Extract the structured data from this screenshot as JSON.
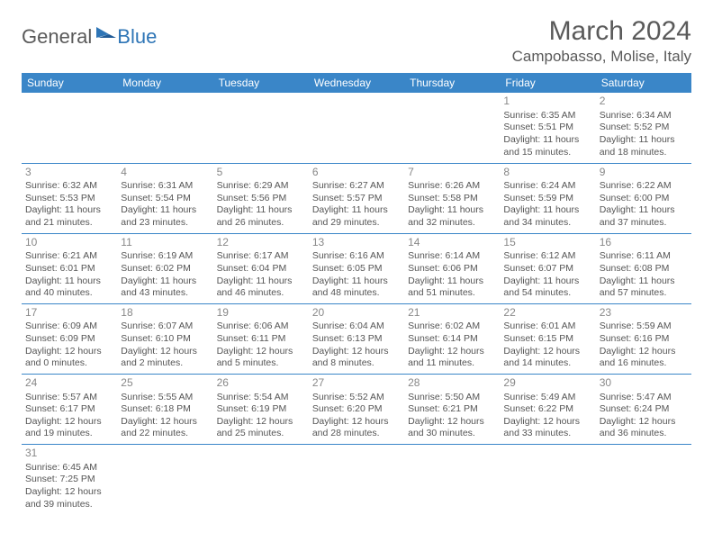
{
  "logo": {
    "general": "General",
    "blue": "Blue"
  },
  "title": "March 2024",
  "location": "Campobasso, Molise, Italy",
  "colors": {
    "header_bg": "#3a86c8",
    "header_text": "#ffffff",
    "grid_line": "#3a86c8",
    "text": "#555555",
    "daynum": "#888888",
    "logo_gray": "#5a5a5a",
    "logo_blue": "#2e75b6"
  },
  "dayHeaders": [
    "Sunday",
    "Monday",
    "Tuesday",
    "Wednesday",
    "Thursday",
    "Friday",
    "Saturday"
  ],
  "weeks": [
    [
      null,
      null,
      null,
      null,
      null,
      {
        "n": "1",
        "sr": "Sunrise: 6:35 AM",
        "ss": "Sunset: 5:51 PM",
        "d1": "Daylight: 11 hours",
        "d2": "and 15 minutes."
      },
      {
        "n": "2",
        "sr": "Sunrise: 6:34 AM",
        "ss": "Sunset: 5:52 PM",
        "d1": "Daylight: 11 hours",
        "d2": "and 18 minutes."
      }
    ],
    [
      {
        "n": "3",
        "sr": "Sunrise: 6:32 AM",
        "ss": "Sunset: 5:53 PM",
        "d1": "Daylight: 11 hours",
        "d2": "and 21 minutes."
      },
      {
        "n": "4",
        "sr": "Sunrise: 6:31 AM",
        "ss": "Sunset: 5:54 PM",
        "d1": "Daylight: 11 hours",
        "d2": "and 23 minutes."
      },
      {
        "n": "5",
        "sr": "Sunrise: 6:29 AM",
        "ss": "Sunset: 5:56 PM",
        "d1": "Daylight: 11 hours",
        "d2": "and 26 minutes."
      },
      {
        "n": "6",
        "sr": "Sunrise: 6:27 AM",
        "ss": "Sunset: 5:57 PM",
        "d1": "Daylight: 11 hours",
        "d2": "and 29 minutes."
      },
      {
        "n": "7",
        "sr": "Sunrise: 6:26 AM",
        "ss": "Sunset: 5:58 PM",
        "d1": "Daylight: 11 hours",
        "d2": "and 32 minutes."
      },
      {
        "n": "8",
        "sr": "Sunrise: 6:24 AM",
        "ss": "Sunset: 5:59 PM",
        "d1": "Daylight: 11 hours",
        "d2": "and 34 minutes."
      },
      {
        "n": "9",
        "sr": "Sunrise: 6:22 AM",
        "ss": "Sunset: 6:00 PM",
        "d1": "Daylight: 11 hours",
        "d2": "and 37 minutes."
      }
    ],
    [
      {
        "n": "10",
        "sr": "Sunrise: 6:21 AM",
        "ss": "Sunset: 6:01 PM",
        "d1": "Daylight: 11 hours",
        "d2": "and 40 minutes."
      },
      {
        "n": "11",
        "sr": "Sunrise: 6:19 AM",
        "ss": "Sunset: 6:02 PM",
        "d1": "Daylight: 11 hours",
        "d2": "and 43 minutes."
      },
      {
        "n": "12",
        "sr": "Sunrise: 6:17 AM",
        "ss": "Sunset: 6:04 PM",
        "d1": "Daylight: 11 hours",
        "d2": "and 46 minutes."
      },
      {
        "n": "13",
        "sr": "Sunrise: 6:16 AM",
        "ss": "Sunset: 6:05 PM",
        "d1": "Daylight: 11 hours",
        "d2": "and 48 minutes."
      },
      {
        "n": "14",
        "sr": "Sunrise: 6:14 AM",
        "ss": "Sunset: 6:06 PM",
        "d1": "Daylight: 11 hours",
        "d2": "and 51 minutes."
      },
      {
        "n": "15",
        "sr": "Sunrise: 6:12 AM",
        "ss": "Sunset: 6:07 PM",
        "d1": "Daylight: 11 hours",
        "d2": "and 54 minutes."
      },
      {
        "n": "16",
        "sr": "Sunrise: 6:11 AM",
        "ss": "Sunset: 6:08 PM",
        "d1": "Daylight: 11 hours",
        "d2": "and 57 minutes."
      }
    ],
    [
      {
        "n": "17",
        "sr": "Sunrise: 6:09 AM",
        "ss": "Sunset: 6:09 PM",
        "d1": "Daylight: 12 hours",
        "d2": "and 0 minutes."
      },
      {
        "n": "18",
        "sr": "Sunrise: 6:07 AM",
        "ss": "Sunset: 6:10 PM",
        "d1": "Daylight: 12 hours",
        "d2": "and 2 minutes."
      },
      {
        "n": "19",
        "sr": "Sunrise: 6:06 AM",
        "ss": "Sunset: 6:11 PM",
        "d1": "Daylight: 12 hours",
        "d2": "and 5 minutes."
      },
      {
        "n": "20",
        "sr": "Sunrise: 6:04 AM",
        "ss": "Sunset: 6:13 PM",
        "d1": "Daylight: 12 hours",
        "d2": "and 8 minutes."
      },
      {
        "n": "21",
        "sr": "Sunrise: 6:02 AM",
        "ss": "Sunset: 6:14 PM",
        "d1": "Daylight: 12 hours",
        "d2": "and 11 minutes."
      },
      {
        "n": "22",
        "sr": "Sunrise: 6:01 AM",
        "ss": "Sunset: 6:15 PM",
        "d1": "Daylight: 12 hours",
        "d2": "and 14 minutes."
      },
      {
        "n": "23",
        "sr": "Sunrise: 5:59 AM",
        "ss": "Sunset: 6:16 PM",
        "d1": "Daylight: 12 hours",
        "d2": "and 16 minutes."
      }
    ],
    [
      {
        "n": "24",
        "sr": "Sunrise: 5:57 AM",
        "ss": "Sunset: 6:17 PM",
        "d1": "Daylight: 12 hours",
        "d2": "and 19 minutes."
      },
      {
        "n": "25",
        "sr": "Sunrise: 5:55 AM",
        "ss": "Sunset: 6:18 PM",
        "d1": "Daylight: 12 hours",
        "d2": "and 22 minutes."
      },
      {
        "n": "26",
        "sr": "Sunrise: 5:54 AM",
        "ss": "Sunset: 6:19 PM",
        "d1": "Daylight: 12 hours",
        "d2": "and 25 minutes."
      },
      {
        "n": "27",
        "sr": "Sunrise: 5:52 AM",
        "ss": "Sunset: 6:20 PM",
        "d1": "Daylight: 12 hours",
        "d2": "and 28 minutes."
      },
      {
        "n": "28",
        "sr": "Sunrise: 5:50 AM",
        "ss": "Sunset: 6:21 PM",
        "d1": "Daylight: 12 hours",
        "d2": "and 30 minutes."
      },
      {
        "n": "29",
        "sr": "Sunrise: 5:49 AM",
        "ss": "Sunset: 6:22 PM",
        "d1": "Daylight: 12 hours",
        "d2": "and 33 minutes."
      },
      {
        "n": "30",
        "sr": "Sunrise: 5:47 AM",
        "ss": "Sunset: 6:24 PM",
        "d1": "Daylight: 12 hours",
        "d2": "and 36 minutes."
      }
    ],
    [
      {
        "n": "31",
        "sr": "Sunrise: 6:45 AM",
        "ss": "Sunset: 7:25 PM",
        "d1": "Daylight: 12 hours",
        "d2": "and 39 minutes."
      },
      null,
      null,
      null,
      null,
      null,
      null
    ]
  ]
}
